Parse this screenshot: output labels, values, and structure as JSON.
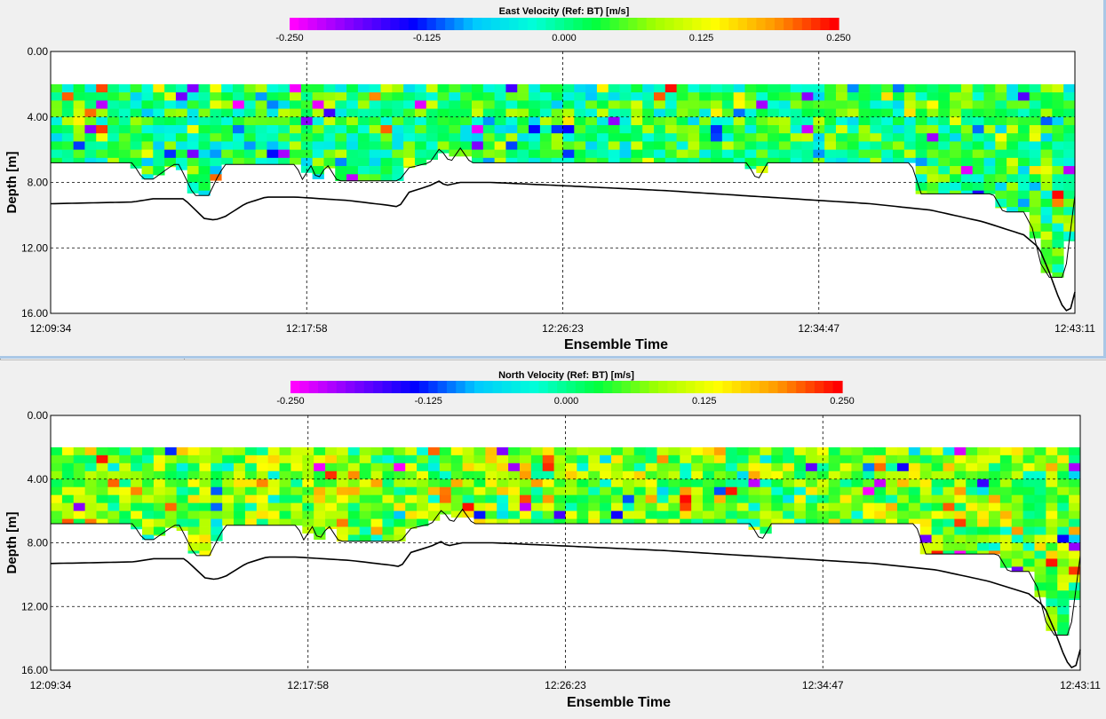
{
  "chart_data": [
    {
      "type": "heatmap",
      "title": "East Velocity (Ref: BT) [m/s]",
      "xlabel": "Ensemble Time",
      "ylabel": "Depth [m]",
      "x_ticks": [
        "12:09:34",
        "12:17:58",
        "12:26:23",
        "12:34:47",
        "12:43:11"
      ],
      "y_ticks": [
        "0.00",
        "4.00",
        "8.00",
        "12.00",
        "16.00"
      ],
      "ylim": [
        0,
        16
      ],
      "colorbar": {
        "ticks": [
          "-0.250",
          "-0.125",
          "0.000",
          "0.125",
          "0.250"
        ],
        "range": [
          -0.25,
          0.25
        ],
        "colors": [
          "#ff00ff",
          "#7a00ff",
          "#0000ff",
          "#00c8ff",
          "#00ffd8",
          "#00ff40",
          "#a0ff00",
          "#ffff00",
          "#ff9900",
          "#ff0000"
        ]
      },
      "grid": true,
      "bin_top_depth": 2.0,
      "bin_size": 0.5,
      "ensembles": 90,
      "mean_velocity": 0.02,
      "velocity_spread": 0.09,
      "bottom_depth": [
        [
          0.0,
          9.3
        ],
        [
          0.08,
          9.2
        ],
        [
          0.1,
          9.0
        ],
        [
          0.13,
          9.0
        ],
        [
          0.14,
          9.6
        ],
        [
          0.15,
          10.2
        ],
        [
          0.16,
          10.3
        ],
        [
          0.17,
          10.1
        ],
        [
          0.19,
          9.3
        ],
        [
          0.21,
          8.9
        ],
        [
          0.24,
          8.9
        ],
        [
          0.29,
          9.1
        ],
        [
          0.33,
          9.4
        ],
        [
          0.34,
          9.5
        ],
        [
          0.35,
          8.6
        ],
        [
          0.37,
          8.2
        ],
        [
          0.38,
          7.9
        ],
        [
          0.385,
          8.2
        ],
        [
          0.4,
          8.0
        ],
        [
          0.43,
          8.0
        ],
        [
          0.5,
          8.2
        ],
        [
          0.6,
          8.5
        ],
        [
          0.7,
          8.9
        ],
        [
          0.8,
          9.3
        ],
        [
          0.86,
          9.7
        ],
        [
          0.91,
          10.4
        ],
        [
          0.95,
          11.2
        ],
        [
          0.965,
          12.0
        ],
        [
          0.975,
          13.5
        ],
        [
          0.985,
          15.2
        ],
        [
          0.99,
          15.8
        ],
        [
          0.995,
          15.9
        ],
        [
          1.0,
          14.7
        ]
      ],
      "data_last_depth": [
        [
          0.0,
          6.8
        ],
        [
          0.08,
          6.8
        ],
        [
          0.09,
          7.8
        ],
        [
          0.1,
          7.8
        ],
        [
          0.12,
          6.9
        ],
        [
          0.125,
          6.9
        ],
        [
          0.13,
          7.5
        ],
        [
          0.14,
          8.8
        ],
        [
          0.155,
          8.8
        ],
        [
          0.16,
          8.0
        ],
        [
          0.17,
          6.9
        ],
        [
          0.24,
          6.9
        ],
        [
          0.245,
          7.9
        ],
        [
          0.255,
          6.9
        ],
        [
          0.26,
          7.9
        ],
        [
          0.27,
          6.9
        ],
        [
          0.28,
          7.9
        ],
        [
          0.34,
          7.9
        ],
        [
          0.35,
          7.1
        ],
        [
          0.37,
          6.8
        ],
        [
          0.38,
          5.9
        ],
        [
          0.39,
          6.8
        ],
        [
          0.4,
          5.9
        ],
        [
          0.41,
          6.8
        ],
        [
          0.68,
          6.8
        ],
        [
          0.69,
          7.9
        ],
        [
          0.7,
          6.8
        ],
        [
          0.84,
          6.8
        ],
        [
          0.85,
          8.7
        ],
        [
          0.92,
          8.7
        ],
        [
          0.93,
          9.8
        ],
        [
          0.95,
          9.8
        ],
        [
          0.96,
          11.0
        ],
        [
          0.965,
          12.8
        ],
        [
          0.975,
          13.8
        ],
        [
          0.99,
          13.8
        ],
        [
          1.0,
          8.8
        ]
      ]
    },
    {
      "type": "heatmap",
      "title": "North Velocity (Ref: BT) [m/s]",
      "xlabel": "Ensemble Time",
      "ylabel": "Depth [m]",
      "x_ticks": [
        "12:09:34",
        "12:17:58",
        "12:26:23",
        "12:34:47",
        "12:43:11"
      ],
      "y_ticks": [
        "0.00",
        "4.00",
        "8.00",
        "12.00",
        "16.00"
      ],
      "ylim": [
        0,
        16
      ],
      "colorbar": {
        "ticks": [
          "-0.250",
          "-0.125",
          "0.000",
          "0.125",
          "0.250"
        ],
        "range": [
          -0.25,
          0.25
        ],
        "colors": [
          "#ff00ff",
          "#7a00ff",
          "#0000ff",
          "#00c8ff",
          "#00ffd8",
          "#00ff40",
          "#a0ff00",
          "#ffff00",
          "#ff9900",
          "#ff0000"
        ]
      },
      "grid": true,
      "bin_top_depth": 2.0,
      "bin_size": 0.5,
      "ensembles": 90,
      "mean_velocity": 0.07,
      "velocity_spread": 0.09,
      "bottom_depth": [
        [
          0.0,
          9.3
        ],
        [
          0.08,
          9.2
        ],
        [
          0.1,
          9.0
        ],
        [
          0.13,
          9.0
        ],
        [
          0.14,
          9.6
        ],
        [
          0.15,
          10.2
        ],
        [
          0.16,
          10.3
        ],
        [
          0.17,
          10.1
        ],
        [
          0.19,
          9.3
        ],
        [
          0.21,
          8.9
        ],
        [
          0.24,
          8.9
        ],
        [
          0.29,
          9.1
        ],
        [
          0.33,
          9.4
        ],
        [
          0.34,
          9.5
        ],
        [
          0.35,
          8.6
        ],
        [
          0.37,
          8.2
        ],
        [
          0.38,
          7.9
        ],
        [
          0.385,
          8.2
        ],
        [
          0.4,
          8.0
        ],
        [
          0.43,
          8.0
        ],
        [
          0.5,
          8.2
        ],
        [
          0.6,
          8.5
        ],
        [
          0.7,
          8.9
        ],
        [
          0.8,
          9.3
        ],
        [
          0.86,
          9.7
        ],
        [
          0.91,
          10.4
        ],
        [
          0.95,
          11.2
        ],
        [
          0.965,
          12.0
        ],
        [
          0.975,
          13.5
        ],
        [
          0.985,
          15.2
        ],
        [
          0.99,
          15.8
        ],
        [
          0.995,
          15.9
        ],
        [
          1.0,
          14.7
        ]
      ],
      "data_last_depth": [
        [
          0.0,
          6.8
        ],
        [
          0.08,
          6.8
        ],
        [
          0.09,
          7.8
        ],
        [
          0.1,
          7.8
        ],
        [
          0.12,
          6.9
        ],
        [
          0.125,
          6.9
        ],
        [
          0.13,
          7.5
        ],
        [
          0.14,
          8.8
        ],
        [
          0.155,
          8.8
        ],
        [
          0.16,
          8.0
        ],
        [
          0.17,
          6.9
        ],
        [
          0.24,
          6.9
        ],
        [
          0.245,
          7.9
        ],
        [
          0.255,
          6.9
        ],
        [
          0.26,
          7.9
        ],
        [
          0.27,
          6.9
        ],
        [
          0.28,
          7.9
        ],
        [
          0.34,
          7.9
        ],
        [
          0.35,
          7.1
        ],
        [
          0.37,
          6.8
        ],
        [
          0.38,
          5.9
        ],
        [
          0.39,
          6.8
        ],
        [
          0.4,
          5.9
        ],
        [
          0.41,
          6.8
        ],
        [
          0.68,
          6.8
        ],
        [
          0.69,
          7.9
        ],
        [
          0.7,
          6.8
        ],
        [
          0.84,
          6.8
        ],
        [
          0.85,
          8.7
        ],
        [
          0.92,
          8.7
        ],
        [
          0.93,
          9.8
        ],
        [
          0.95,
          9.8
        ],
        [
          0.96,
          11.0
        ],
        [
          0.965,
          12.8
        ],
        [
          0.975,
          13.8
        ],
        [
          0.99,
          13.8
        ],
        [
          1.0,
          8.8
        ]
      ]
    }
  ]
}
